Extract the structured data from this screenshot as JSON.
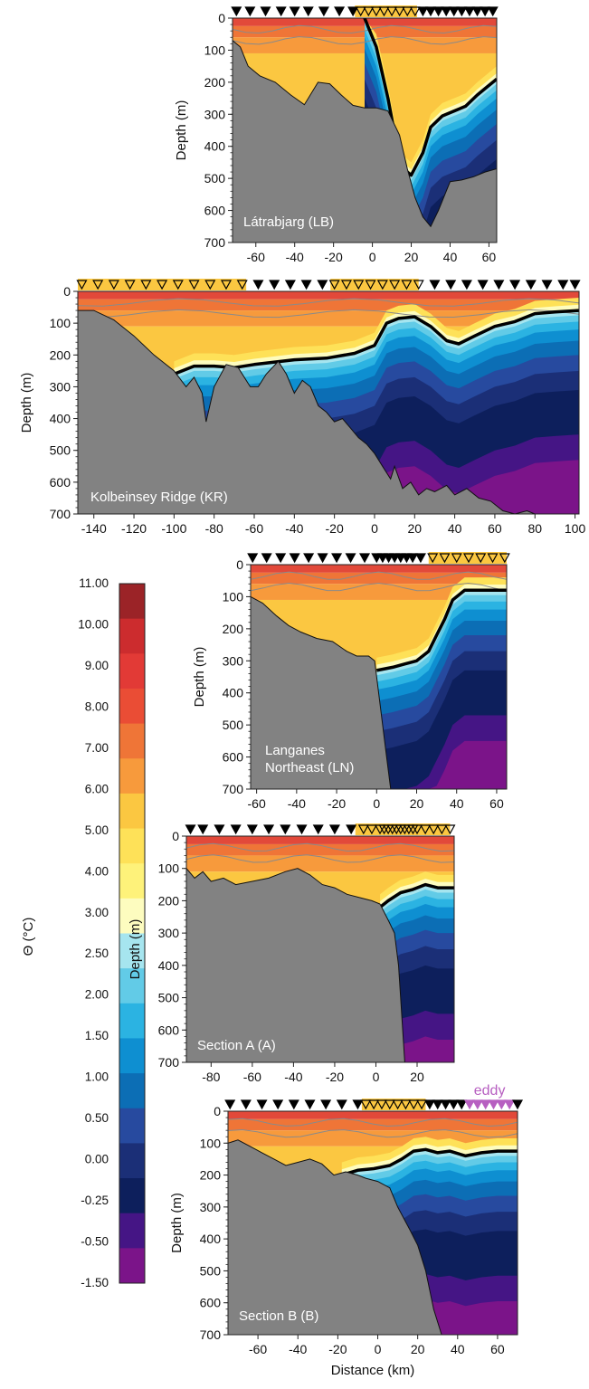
{
  "colorbar": {
    "label": "Θ (°C)",
    "ticks": [
      "11.00",
      "10.00",
      "9.00",
      "8.00",
      "7.00",
      "6.00",
      "5.00",
      "4.00",
      "3.00",
      "2.50",
      "2.00",
      "1.50",
      "1.00",
      "0.50",
      "0.00",
      "-0.25",
      "-0.50",
      "-1.50"
    ],
    "bins": [
      "#9b2327",
      "#cc2c2e",
      "#e23a36",
      "#ea4d35",
      "#ef7537",
      "#f79a3c",
      "#fbc741",
      "#fee158",
      "#fef27a",
      "#fdfcbf",
      "#a6e5ef",
      "#62cbe7",
      "#2bb3e2",
      "#0e8fd1",
      "#0c6eb5",
      "#274a9f",
      "#1b2f77",
      "#0d1f5c",
      "#451585",
      "#7b1489"
    ]
  },
  "chart_data": [
    {
      "type": "heatmap",
      "id": "LB",
      "label": "Látrabjarg (LB)",
      "xlabel": "",
      "ylabel": "Depth (m)",
      "xlim": [
        -72,
        64
      ],
      "ylim": [
        700,
        0
      ],
      "xticks": [
        -60,
        -40,
        -20,
        0,
        20,
        40,
        60
      ],
      "yticks": [
        0,
        100,
        200,
        300,
        400,
        500,
        600,
        700
      ],
      "stations": [
        -70,
        -63,
        -55,
        -47,
        -40,
        -33,
        -25,
        -17,
        -10,
        -6,
        -2,
        2,
        6,
        10,
        14,
        18,
        22,
        26,
        30,
        34,
        38,
        42,
        46,
        50,
        54,
        58,
        62
      ],
      "highlight": [
        -9,
        23
      ],
      "bottom": [
        [
          -72,
          70
        ],
        [
          -68,
          90
        ],
        [
          -64,
          150
        ],
        [
          -58,
          180
        ],
        [
          -50,
          200
        ],
        [
          -42,
          240
        ],
        [
          -35,
          270
        ],
        [
          -28,
          200
        ],
        [
          -22,
          205
        ],
        [
          -16,
          240
        ],
        [
          -10,
          272
        ],
        [
          -4,
          280
        ],
        [
          2,
          280
        ],
        [
          8,
          290
        ],
        [
          14,
          365
        ],
        [
          18,
          470
        ],
        [
          22,
          560
        ],
        [
          26,
          620
        ],
        [
          30,
          650
        ],
        [
          34,
          600
        ],
        [
          38,
          540
        ],
        [
          40,
          510
        ],
        [
          46,
          505
        ],
        [
          52,
          495
        ],
        [
          58,
          480
        ],
        [
          64,
          470
        ]
      ],
      "isotherm_thick": [
        [
          -4,
          0
        ],
        [
          2,
          90
        ],
        [
          8,
          250
        ],
        [
          12,
          380
        ],
        [
          16,
          470
        ],
        [
          20,
          490
        ],
        [
          26,
          420
        ],
        [
          30,
          340
        ],
        [
          36,
          305
        ],
        [
          42,
          290
        ],
        [
          48,
          275
        ],
        [
          54,
          240
        ],
        [
          60,
          210
        ],
        [
          64,
          190
        ]
      ]
    },
    {
      "type": "heatmap",
      "id": "KR",
      "label": "Kolbeinsey Ridge (KR)",
      "xlabel": "",
      "ylabel": "Depth (m)",
      "xlim": [
        -148,
        102
      ],
      "ylim": [
        700,
        0
      ],
      "xticks": [
        -140,
        -120,
        -100,
        -80,
        -60,
        -40,
        -20,
        0,
        20,
        40,
        60,
        80,
        100
      ],
      "yticks": [
        0,
        100,
        200,
        300,
        400,
        500,
        600,
        700
      ],
      "stations": [
        -146,
        -138,
        -130,
        -122,
        -114,
        -106,
        -98,
        -90,
        -82,
        -74,
        -66,
        -58,
        -50,
        -42,
        -34,
        -26,
        -20,
        -14,
        -8,
        -2,
        4,
        10,
        16,
        22,
        30,
        38,
        46,
        54,
        62,
        70,
        78,
        86,
        94,
        100
      ],
      "highlight": [
        [
          -148,
          -64
        ],
        [
          -22,
          22
        ]
      ],
      "bottom": [
        [
          -148,
          60
        ],
        [
          -140,
          60
        ],
        [
          -130,
          90
        ],
        [
          -120,
          140
        ],
        [
          -110,
          200
        ],
        [
          -100,
          250
        ],
        [
          -94,
          300
        ],
        [
          -90,
          270
        ],
        [
          -86,
          320
        ],
        [
          -84,
          410
        ],
        [
          -80,
          300
        ],
        [
          -74,
          230
        ],
        [
          -68,
          240
        ],
        [
          -62,
          300
        ],
        [
          -58,
          300
        ],
        [
          -54,
          260
        ],
        [
          -48,
          220
        ],
        [
          -44,
          260
        ],
        [
          -40,
          320
        ],
        [
          -36,
          280
        ],
        [
          -32,
          300
        ],
        [
          -28,
          360
        ],
        [
          -24,
          380
        ],
        [
          -20,
          410
        ],
        [
          -16,
          400
        ],
        [
          -12,
          430
        ],
        [
          -8,
          460
        ],
        [
          -4,
          480
        ],
        [
          0,
          510
        ],
        [
          4,
          550
        ],
        [
          8,
          590
        ],
        [
          10,
          550
        ],
        [
          14,
          620
        ],
        [
          18,
          600
        ],
        [
          22,
          640
        ],
        [
          26,
          620
        ],
        [
          30,
          630
        ],
        [
          36,
          610
        ],
        [
          40,
          640
        ],
        [
          46,
          620
        ],
        [
          52,
          650
        ],
        [
          58,
          660
        ],
        [
          64,
          690
        ],
        [
          70,
          700
        ],
        [
          76,
          690
        ],
        [
          80,
          700
        ]
      ],
      "isotherm_thick": [
        [
          -100,
          260
        ],
        [
          -90,
          235
        ],
        [
          -80,
          235
        ],
        [
          -70,
          240
        ],
        [
          -60,
          230
        ],
        [
          -40,
          215
        ],
        [
          -24,
          210
        ],
        [
          -10,
          195
        ],
        [
          0,
          170
        ],
        [
          6,
          100
        ],
        [
          12,
          85
        ],
        [
          20,
          80
        ],
        [
          28,
          110
        ],
        [
          36,
          155
        ],
        [
          42,
          165
        ],
        [
          50,
          140
        ],
        [
          60,
          110
        ],
        [
          70,
          95
        ],
        [
          80,
          70
        ],
        [
          90,
          65
        ],
        [
          102,
          60
        ]
      ]
    },
    {
      "type": "heatmap",
      "id": "LN",
      "label": "Langanes Northeast (LN)",
      "label_lines": [
        "Langanes",
        "Northeast (LN)"
      ],
      "xlabel": "",
      "ylabel": "Depth (m)",
      "xlim": [
        -63,
        65
      ],
      "ylim": [
        700,
        0
      ],
      "xticks": [
        -60,
        -40,
        -20,
        0,
        20,
        40,
        60
      ],
      "yticks": [
        0,
        100,
        200,
        300,
        400,
        500,
        600,
        700
      ],
      "stations": [
        -62,
        -55,
        -48,
        -41,
        -34,
        -27,
        -20,
        -13,
        -6,
        0,
        3,
        6,
        9,
        12,
        15,
        18,
        22,
        28,
        34,
        40,
        46,
        52,
        58,
        64
      ],
      "highlight": [
        [
          26,
          65
        ]
      ],
      "bottom": [
        [
          -63,
          100
        ],
        [
          -57,
          120
        ],
        [
          -50,
          160
        ],
        [
          -44,
          190
        ],
        [
          -38,
          210
        ],
        [
          -30,
          230
        ],
        [
          -22,
          240
        ],
        [
          -15,
          270
        ],
        [
          -10,
          285
        ],
        [
          -4,
          285
        ],
        [
          -1,
          300
        ],
        [
          1,
          400
        ],
        [
          3,
          500
        ],
        [
          5,
          600
        ],
        [
          7,
          700
        ]
      ],
      "isotherm_thick": [
        [
          0,
          330
        ],
        [
          8,
          320
        ],
        [
          14,
          310
        ],
        [
          20,
          300
        ],
        [
          26,
          270
        ],
        [
          30,
          220
        ],
        [
          34,
          170
        ],
        [
          38,
          110
        ],
        [
          44,
          80
        ],
        [
          52,
          80
        ],
        [
          65,
          80
        ]
      ]
    },
    {
      "type": "heatmap",
      "id": "A",
      "label": "Section A (A)",
      "xlabel": "",
      "ylabel": "Depth (m)",
      "xlim": [
        -92,
        38
      ],
      "ylim": [
        700,
        0
      ],
      "xticks": [
        -80,
        -60,
        -40,
        -20,
        0,
        20
      ],
      "yticks": [
        0,
        100,
        200,
        300,
        400,
        500,
        600,
        700
      ],
      "stations": [
        -90,
        -84,
        -76,
        -68,
        -60,
        -52,
        -44,
        -36,
        -28,
        -20,
        -12,
        -6,
        -2,
        2,
        4,
        6,
        8,
        10,
        12,
        14,
        16,
        18,
        20,
        24,
        28,
        32,
        36
      ],
      "highlight": [
        [
          -10,
          36
        ]
      ],
      "bottom": [
        [
          -92,
          100
        ],
        [
          -88,
          130
        ],
        [
          -84,
          110
        ],
        [
          -80,
          140
        ],
        [
          -74,
          130
        ],
        [
          -68,
          150
        ],
        [
          -60,
          140
        ],
        [
          -52,
          130
        ],
        [
          -44,
          110
        ],
        [
          -38,
          100
        ],
        [
          -32,
          120
        ],
        [
          -26,
          150
        ],
        [
          -20,
          160
        ],
        [
          -14,
          180
        ],
        [
          -8,
          190
        ],
        [
          -2,
          200
        ],
        [
          2,
          210
        ],
        [
          6,
          260
        ],
        [
          9,
          300
        ],
        [
          11,
          400
        ],
        [
          12,
          500
        ],
        [
          13,
          600
        ],
        [
          14,
          700
        ]
      ],
      "isotherm_thick": [
        [
          2,
          220
        ],
        [
          6,
          200
        ],
        [
          12,
          175
        ],
        [
          18,
          165
        ],
        [
          24,
          150
        ],
        [
          30,
          160
        ],
        [
          38,
          160
        ]
      ]
    },
    {
      "type": "heatmap",
      "id": "B",
      "label": "Section B (B)",
      "xlabel": "Distance (km)",
      "ylabel": "Depth (m)",
      "xlim": [
        -75,
        70
      ],
      "ylim": [
        700,
        0
      ],
      "xticks": [
        -60,
        -40,
        -20,
        0,
        20,
        40,
        60
      ],
      "yticks": [
        0,
        100,
        200,
        300,
        400,
        500,
        600,
        700
      ],
      "stations": [
        -74,
        -66,
        -58,
        -50,
        -42,
        -34,
        -26,
        -18,
        -10,
        -6,
        -2,
        2,
        6,
        10,
        14,
        18,
        22,
        26,
        30,
        34,
        38,
        42,
        46,
        50,
        54,
        58,
        62,
        66,
        70
      ],
      "highlight": [
        [
          -8,
          24
        ]
      ],
      "eddy_label": "eddy",
      "eddy": [
        [
          44,
          68
        ]
      ],
      "bottom": [
        [
          -75,
          100
        ],
        [
          -70,
          90
        ],
        [
          -64,
          110
        ],
        [
          -58,
          130
        ],
        [
          -52,
          150
        ],
        [
          -46,
          170
        ],
        [
          -40,
          160
        ],
        [
          -34,
          150
        ],
        [
          -28,
          165
        ],
        [
          -22,
          200
        ],
        [
          -16,
          190
        ],
        [
          -10,
          200
        ],
        [
          -6,
          210
        ],
        [
          0,
          220
        ],
        [
          6,
          240
        ],
        [
          10,
          300
        ],
        [
          16,
          370
        ],
        [
          20,
          420
        ],
        [
          24,
          500
        ],
        [
          28,
          620
        ],
        [
          32,
          700
        ]
      ],
      "isotherm_thick": [
        [
          -18,
          200
        ],
        [
          -10,
          185
        ],
        [
          -2,
          180
        ],
        [
          6,
          170
        ],
        [
          12,
          150
        ],
        [
          18,
          125
        ],
        [
          24,
          120
        ],
        [
          30,
          130
        ],
        [
          36,
          125
        ],
        [
          44,
          140
        ],
        [
          52,
          130
        ],
        [
          60,
          125
        ],
        [
          70,
          125
        ]
      ]
    }
  ]
}
